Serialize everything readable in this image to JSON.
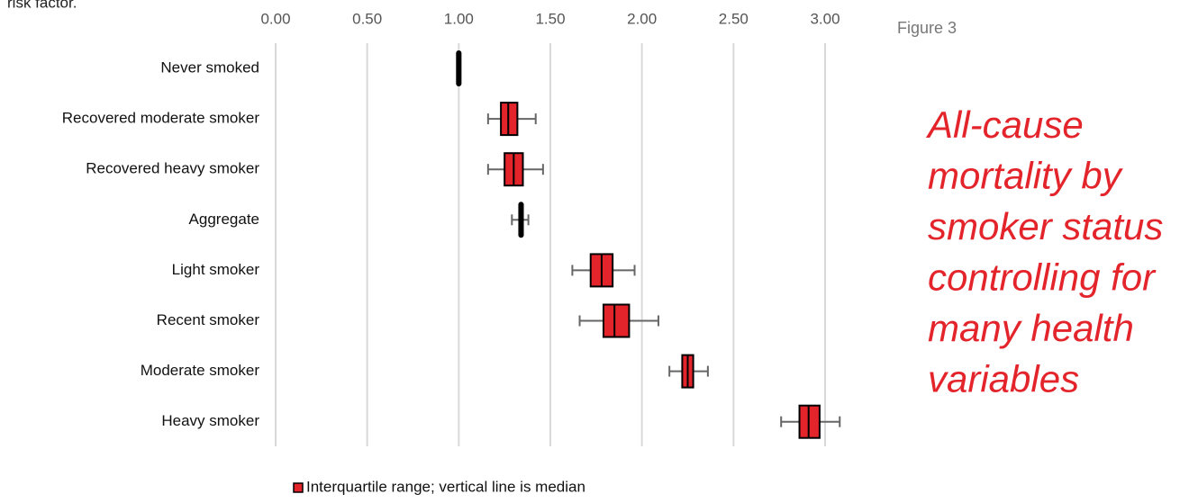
{
  "chart_data": {
    "type": "box",
    "caption_fragment": "risk factor.",
    "figure_label": "Figure 3",
    "title_lines": [
      "All-cause",
      "mortality by",
      "smoker status",
      "controlling for",
      "many health",
      "variables"
    ],
    "categories": [
      "Never smoked",
      "Recovered moderate smoker",
      "Recovered heavy smoker",
      "Aggregate",
      "Light smoker",
      "Recent smoker",
      "Moderate smoker",
      "Heavy smoker"
    ],
    "q1": [
      0.99,
      1.23,
      1.25,
      1.33,
      1.72,
      1.79,
      2.22,
      2.86
    ],
    "median": [
      1.0,
      1.27,
      1.3,
      1.34,
      1.78,
      1.85,
      2.25,
      2.91
    ],
    "q3": [
      1.01,
      1.32,
      1.35,
      1.35,
      1.84,
      1.93,
      2.28,
      2.97
    ],
    "whisker_low": [
      null,
      1.16,
      1.16,
      1.29,
      1.62,
      1.66,
      2.15,
      2.76
    ],
    "whisker_high": [
      null,
      1.42,
      1.46,
      1.38,
      1.96,
      2.09,
      2.36,
      3.08
    ],
    "colors": [
      "#000000",
      "#e3242b",
      "#e3242b",
      "#000000",
      "#e3242b",
      "#e3242b",
      "#e3242b",
      "#e3242b"
    ],
    "legend_label": "Interquartile range; vertical line is median",
    "legend_color": "#e3242b",
    "xlim": [
      0,
      3
    ],
    "xticks": [
      {
        "value": 0,
        "label": "0.00"
      },
      {
        "value": 0.5,
        "label": "0.50"
      },
      {
        "value": 1,
        "label": "1.00"
      },
      {
        "value": 1.5,
        "label": "1.50"
      },
      {
        "value": 2,
        "label": "2.00"
      },
      {
        "value": 2.5,
        "label": "2.50"
      },
      {
        "value": 3,
        "label": "3.00"
      }
    ],
    "grid": true
  }
}
